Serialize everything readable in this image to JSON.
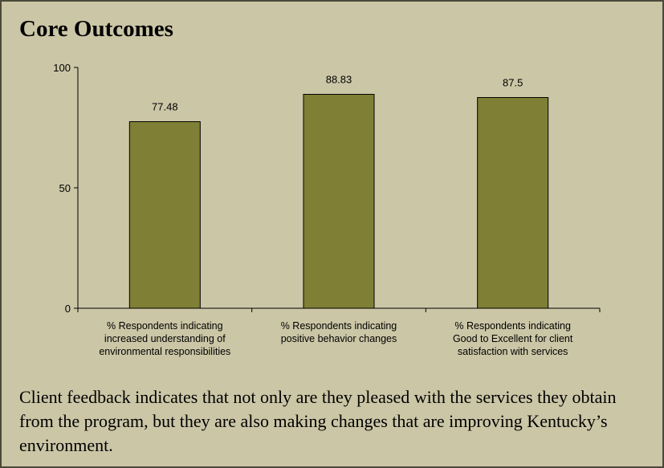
{
  "chart_data": {
    "type": "bar",
    "title": "Core Outcomes",
    "categories": [
      "% Respondents indicating\nincreased understanding of\nenvironmental responsibilities",
      "% Respondents indicating\npositive behavior changes",
      "% Respondents indicating\nGood to Excellent for client\nsatisfaction with services"
    ],
    "values": [
      77.48,
      88.83,
      87.5
    ],
    "color": "#7f7f35",
    "ylim": [
      0,
      100
    ],
    "yticks": [
      0,
      50,
      100
    ],
    "grid": false
  },
  "caption": "Client feedback indicates that not only are they pleased with the services they obtain from the program, but they are also making changes that are improving Kentucky’s environment."
}
